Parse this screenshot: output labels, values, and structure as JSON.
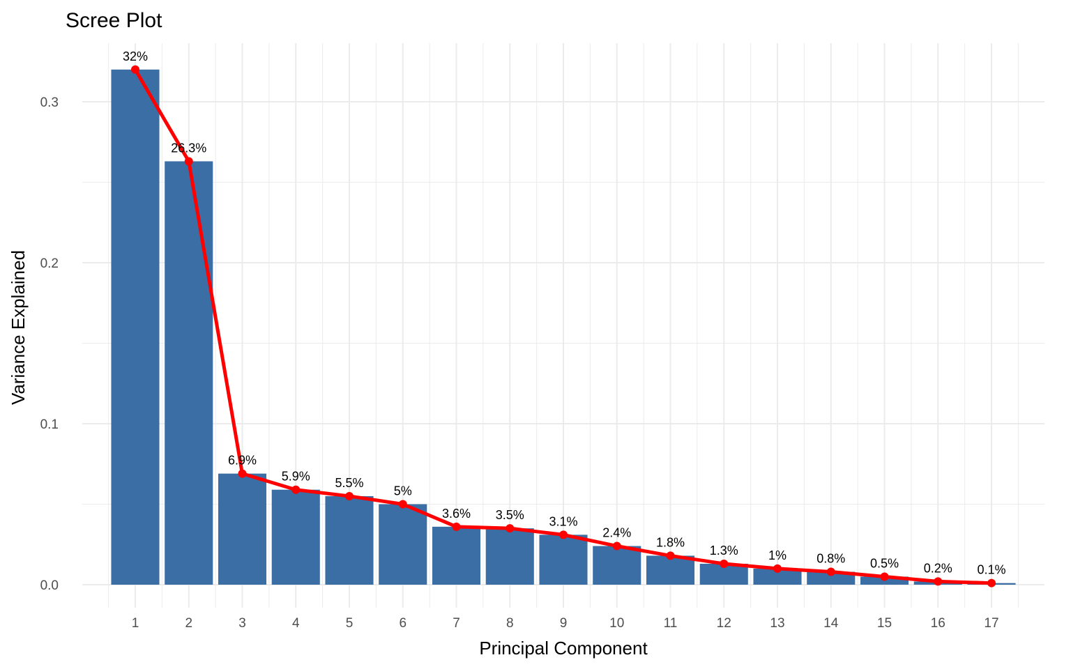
{
  "chart_data": {
    "type": "bar",
    "title": "Scree Plot",
    "xlabel": "Principal Component",
    "ylabel": "Variance Explained",
    "categories": [
      "1",
      "2",
      "3",
      "4",
      "5",
      "6",
      "7",
      "8",
      "9",
      "10",
      "11",
      "12",
      "13",
      "14",
      "15",
      "16",
      "17"
    ],
    "values": [
      0.32,
      0.263,
      0.069,
      0.059,
      0.055,
      0.05,
      0.036,
      0.035,
      0.031,
      0.024,
      0.018,
      0.013,
      0.01,
      0.008,
      0.005,
      0.002,
      0.001
    ],
    "labels": [
      "32%",
      "26.3%",
      "6.9%",
      "5.9%",
      "5.5%",
      "5%",
      "3.6%",
      "3.5%",
      "3.1%",
      "2.4%",
      "1.8%",
      "1.3%",
      "1%",
      "0.8%",
      "0.5%",
      "0.2%",
      "0.1%"
    ],
    "yticks": [
      0.0,
      0.1,
      0.2,
      0.3
    ],
    "ytick_labels": [
      "0.0",
      "0.1",
      "0.2",
      "0.3"
    ],
    "ylim": [
      -0.014,
      0.335
    ],
    "grid": true,
    "overlay": "line with points through bar tops",
    "colors": {
      "bar": "#3A6EA5",
      "line": "#FF0000",
      "grid": "#EBEBEB"
    }
  }
}
